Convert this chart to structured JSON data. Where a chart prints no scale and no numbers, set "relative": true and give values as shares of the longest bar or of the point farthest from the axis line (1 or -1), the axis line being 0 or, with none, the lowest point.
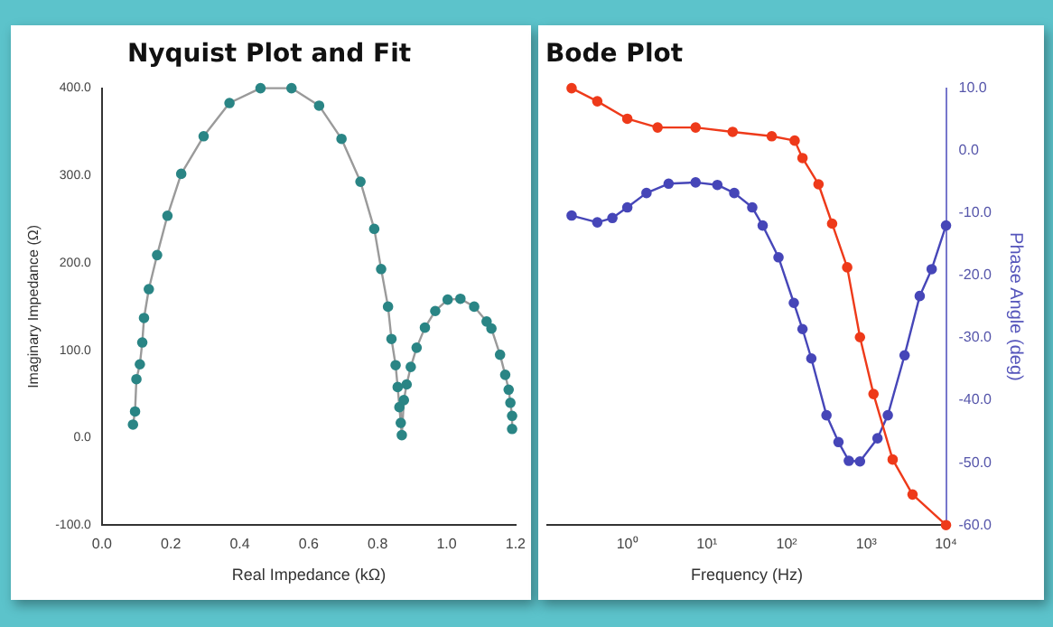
{
  "chart_data": [
    {
      "type": "scatter",
      "title": "Nyquist Plot and Fit",
      "xlabel": "Real Impedance (kΩ)",
      "ylabel": "Imaginary Impedance (Ω)",
      "xlim": [
        0,
        1.2
      ],
      "ylim": [
        -100,
        400
      ],
      "xticks": [
        {
          "value": 0,
          "label": "0.0"
        },
        {
          "value": 0.2,
          "label": "0.2"
        },
        {
          "value": 0.4,
          "label": "0.4"
        },
        {
          "value": 0.6,
          "label": "0.6"
        },
        {
          "value": 0.8,
          "label": "0.8"
        },
        {
          "value": 1,
          "label": "1.0"
        },
        {
          "value": 1.2,
          "label": "1.2"
        }
      ],
      "yticks": [
        {
          "value": -100,
          "label": "-100.0"
        },
        {
          "value": 0,
          "label": "0.0"
        },
        {
          "value": 100,
          "label": "100.0"
        },
        {
          "value": 200,
          "label": "200.0"
        },
        {
          "value": 300,
          "label": "300.0"
        },
        {
          "value": 400,
          "label": "400.0"
        }
      ],
      "grid": false,
      "legend": false,
      "series": [
        {
          "type": "line",
          "color": "#9a9a9a",
          "marker": "none",
          "x": [
            0.09,
            0.096,
            0.1,
            0.11,
            0.117,
            0.122,
            0.136,
            0.16,
            0.19,
            0.23,
            0.295,
            0.37,
            0.46,
            0.55,
            0.63,
            0.695,
            0.75,
            0.79,
            0.81,
            0.83,
            0.84,
            0.852,
            0.858,
            0.863,
            0.867,
            0.87,
            0.876,
            0.884,
            0.896,
            0.913,
            0.937,
            0.967,
            1.003,
            1.04,
            1.08,
            1.116,
            1.13,
            1.155,
            1.17,
            1.18,
            1.185,
            1.19,
            1.19
          ],
          "values": [
            15,
            30,
            67,
            84,
            109,
            137,
            170,
            209,
            254,
            302,
            345,
            383,
            400,
            400,
            380,
            342,
            293,
            239,
            193,
            150,
            113,
            83,
            58,
            35,
            17,
            3,
            43,
            61,
            81,
            103,
            126,
            145,
            158,
            159,
            150,
            133,
            125,
            95,
            72,
            55,
            40,
            25,
            10
          ]
        },
        {
          "color": "#2a8585",
          "marker": "circle",
          "x": [
            0.09,
            0.096,
            0.1,
            0.11,
            0.117,
            0.122,
            0.136,
            0.16,
            0.19,
            0.23,
            0.295,
            0.37,
            0.46,
            0.55,
            0.63,
            0.695,
            0.75,
            0.79,
            0.81,
            0.83,
            0.84,
            0.852,
            0.858,
            0.863,
            0.867,
            0.87,
            0.876,
            0.884,
            0.896,
            0.913,
            0.937,
            0.967,
            1.003,
            1.04,
            1.08,
            1.116,
            1.13,
            1.155,
            1.17,
            1.18,
            1.185,
            1.19,
            1.19
          ],
          "values": [
            15,
            30,
            67,
            84,
            109,
            137,
            170,
            209,
            254,
            302,
            345,
            383,
            400,
            400,
            380,
            342,
            293,
            239,
            193,
            150,
            113,
            83,
            58,
            35,
            17,
            3,
            43,
            61,
            81,
            103,
            126,
            145,
            158,
            159,
            150,
            133,
            125,
            95,
            72,
            55,
            40,
            25,
            10
          ]
        }
      ]
    },
    {
      "type": "line",
      "title": "Bode Plot",
      "xlabel": "Frequency (Hz)",
      "y2label": "Phase Angle (deg)",
      "log": "x",
      "xlim": [
        0.1,
        10000
      ],
      "xticks": [
        {
          "value": 1,
          "label": "10⁰"
        },
        {
          "value": 10,
          "label": "10¹"
        },
        {
          "value": 100,
          "label": "10²"
        },
        {
          "value": 1000,
          "label": "10³"
        },
        {
          "value": 10000,
          "label": "10⁴"
        }
      ],
      "y2lim": [
        -60,
        10
      ],
      "y2ticks": [
        {
          "value": -60,
          "label": "-60.0"
        },
        {
          "value": -50,
          "label": "-50.0"
        },
        {
          "value": -40,
          "label": "-40.0"
        },
        {
          "value": -30,
          "label": "-30.0"
        },
        {
          "value": -20,
          "label": "-20.0"
        },
        {
          "value": -10,
          "label": "-10.0"
        },
        {
          "value": 0,
          "label": "0.0"
        },
        {
          "value": 10,
          "label": "10.0"
        }
      ],
      "grid": false,
      "legend": false,
      "marker": "circle",
      "series": [
        {
          "color": "#4646b8",
          "axis": "y2",
          "x": [
            0.2,
            0.42,
            0.65,
            1,
            1.74,
            3.3,
            7.2,
            13.5,
            22,
            37,
            50,
            79,
            123,
            158,
            204,
            316,
            447,
            603,
            832,
            1380,
            1860,
            3020,
            4680,
            6610,
            10000
          ],
          "values": [
            -10.4,
            -11.5,
            -10.8,
            -9.1,
            -6.8,
            -5.3,
            -5.1,
            -5.5,
            -6.8,
            -9.1,
            -12,
            -17.1,
            -24.4,
            -28.6,
            -33.3,
            -42.4,
            -46.7,
            -49.7,
            -49.8,
            -46.1,
            -42.4,
            -32.8,
            -23.3,
            -19,
            -12
          ]
        }
      ]
    },
    {
      "type": "line",
      "relative": true,
      "log": "x",
      "xlim": [
        0.1,
        10000
      ],
      "tick_labels": false,
      "grid": false,
      "legend": false,
      "marker": "circle",
      "series": [
        {
          "color": "#ee3a1a",
          "x": [
            0.2,
            0.42,
            1,
            2.4,
            7.2,
            21,
            65,
            126,
            158,
            251,
            372,
            575,
            832,
            1230,
            2140,
            3800,
            10000
          ],
          "values": [
            1,
            0.97,
            0.93,
            0.91,
            0.91,
            0.9,
            0.89,
            0.88,
            0.84,
            0.78,
            0.69,
            0.59,
            0.43,
            0.3,
            0.15,
            0.07,
            0
          ]
        }
      ]
    }
  ]
}
